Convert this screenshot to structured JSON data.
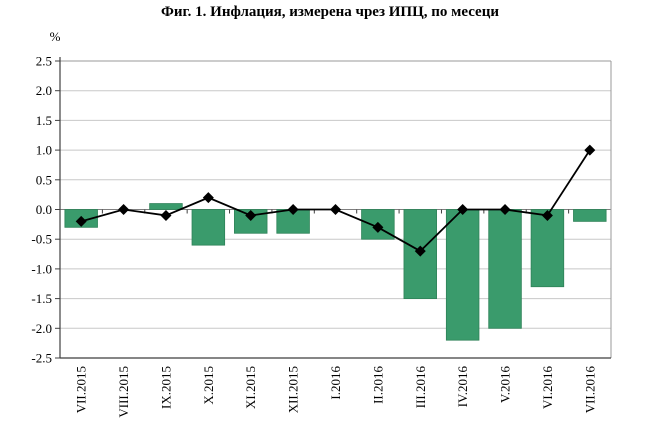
{
  "chart_data": {
    "type": "bar",
    "combo": [
      "bar",
      "line"
    ],
    "title": "Фиг. 1. Инфлация, измерена чрез ИПЦ, по месеци",
    "y_unit_label": "%",
    "categories": [
      "VII.2015",
      "VIII.2015",
      "IX.2015",
      "X.2015",
      "XI.2015",
      "XII.2015",
      "I.2016",
      "II.2016",
      "III.2016",
      "IV.2016",
      "V.2016",
      "VI.2016",
      "VII.2016"
    ],
    "series": [
      {
        "type": "bar",
        "color": "#3a9b6c",
        "border_color": "#2e8258",
        "values": [
          -0.3,
          0.0,
          0.1,
          -0.6,
          -0.4,
          -0.4,
          0.0,
          -0.5,
          -1.5,
          -2.2,
          -2.0,
          -1.3,
          -0.2
        ]
      },
      {
        "type": "line",
        "color": "#000000",
        "marker": "diamond",
        "values": [
          -0.2,
          0.0,
          -0.1,
          0.2,
          -0.1,
          0.0,
          0.0,
          -0.3,
          -0.7,
          0.0,
          0.0,
          -0.1,
          1.0
        ]
      }
    ],
    "ylim": [
      -2.5,
      2.5
    ],
    "ytick_step": 0.5,
    "grid": true,
    "legend_position": "none",
    "colors": {
      "gridline": "#c8c8c8",
      "zero_line": "#7f7f7f",
      "axis_dark": "#3f3f3f",
      "axis_light": "#9a9a9a",
      "text": "#000000"
    }
  }
}
